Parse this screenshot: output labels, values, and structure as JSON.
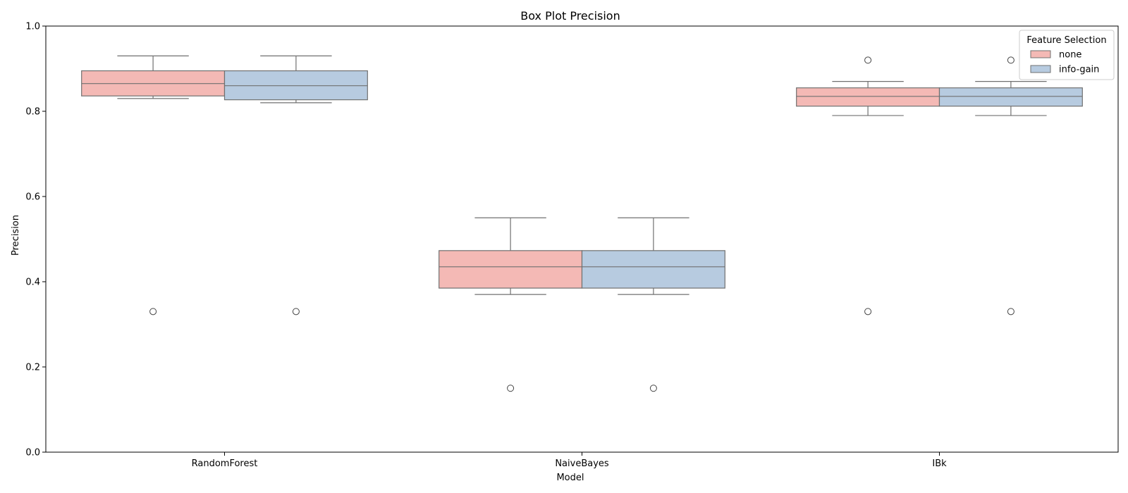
{
  "chart_data": {
    "type": "box",
    "title": "Box Plot Precision",
    "xlabel": "Model",
    "ylabel": "Precision",
    "ylim": [
      0,
      1.0
    ],
    "yticks": [
      0.0,
      0.2,
      0.4,
      0.6,
      0.8,
      1.0
    ],
    "ytick_labels": [
      "0.0",
      "0.2",
      "0.4",
      "0.6",
      "0.8",
      "1.0"
    ],
    "categories": [
      "RandomForest",
      "NaiveBayes",
      "IBk"
    ],
    "legend": {
      "title": "Feature Selection",
      "placement": "top-right"
    },
    "series": [
      {
        "name": "none",
        "color": "#f4b9b5",
        "boxes": [
          {
            "whisker_low": 0.83,
            "q1": 0.836,
            "median": 0.865,
            "q3": 0.895,
            "whisker_high": 0.93,
            "outliers": [
              0.33
            ]
          },
          {
            "whisker_low": 0.37,
            "q1": 0.385,
            "median": 0.435,
            "q3": 0.473,
            "whisker_high": 0.55,
            "outliers": [
              0.15
            ]
          },
          {
            "whisker_low": 0.79,
            "q1": 0.812,
            "median": 0.835,
            "q3": 0.855,
            "whisker_high": 0.87,
            "outliers": [
              0.92,
              0.33
            ]
          }
        ]
      },
      {
        "name": "info-gain",
        "color": "#b7cbe0",
        "boxes": [
          {
            "whisker_low": 0.82,
            "q1": 0.827,
            "median": 0.86,
            "q3": 0.895,
            "whisker_high": 0.93,
            "outliers": [
              0.33
            ]
          },
          {
            "whisker_low": 0.37,
            "q1": 0.385,
            "median": 0.435,
            "q3": 0.473,
            "whisker_high": 0.55,
            "outliers": [
              0.15
            ]
          },
          {
            "whisker_low": 0.79,
            "q1": 0.812,
            "median": 0.835,
            "q3": 0.855,
            "whisker_high": 0.87,
            "outliers": [
              0.92,
              0.33
            ]
          }
        ]
      }
    ]
  }
}
